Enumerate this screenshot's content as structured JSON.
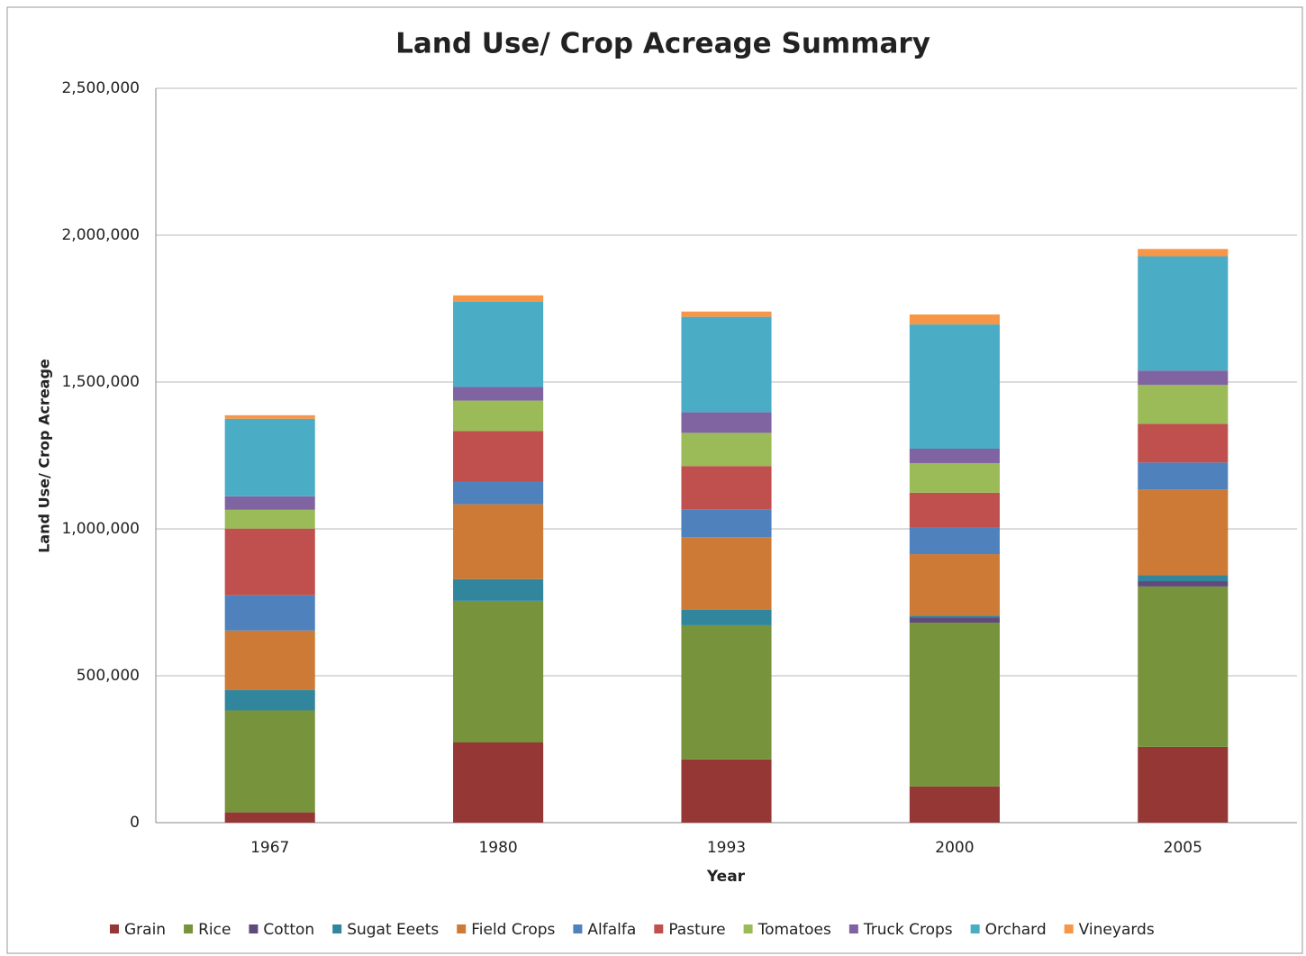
{
  "chart_data": {
    "type": "stacked_bar",
    "title": "Land Use/ Crop Acreage Summary",
    "x_label": "Year",
    "y_label": "Land Use/ Crop Acreage",
    "categories": [
      "1967",
      "1980",
      "1993",
      "2000",
      "2005"
    ],
    "series": [
      {
        "name": "Grain",
        "color": "#953735",
        "values": [
          35000,
          273000,
          215000,
          123000,
          258000
        ]
      },
      {
        "name": "Rice",
        "color": "#77933c",
        "values": [
          347000,
          482000,
          457000,
          558000,
          546000
        ]
      },
      {
        "name": "Cotton",
        "color": "#604a7b",
        "values": [
          0,
          0,
          0,
          18000,
          18000
        ]
      },
      {
        "name": "Sugat Eeets",
        "color": "#31859c",
        "values": [
          70000,
          74000,
          52000,
          6000,
          21000
        ]
      },
      {
        "name": "Field Crops",
        "color": "#cd7a36",
        "values": [
          202000,
          255000,
          248000,
          209000,
          291000
        ]
      },
      {
        "name": "Alfalfa",
        "color": "#4f81bd",
        "values": [
          120000,
          77000,
          95000,
          92000,
          92000
        ]
      },
      {
        "name": "Pasture",
        "color": "#c0504d",
        "values": [
          227000,
          172000,
          147000,
          117000,
          132000
        ]
      },
      {
        "name": "Tomatoes",
        "color": "#9bbb59",
        "values": [
          64000,
          104000,
          113000,
          101000,
          132000
        ]
      },
      {
        "name": "Truck Crops",
        "color": "#8064a2",
        "values": [
          46000,
          46000,
          70000,
          49000,
          49000
        ]
      },
      {
        "name": "Orchard",
        "color": "#4bacc6",
        "values": [
          264000,
          291000,
          325000,
          423000,
          389000
        ]
      },
      {
        "name": "Vineyards",
        "color": "#f79646",
        "values": [
          12000,
          21000,
          18000,
          34000,
          25000
        ]
      }
    ],
    "ylim": [
      0,
      2500000
    ],
    "yticks": [
      0,
      {
        "value": 500000,
        "label": "500,000"
      },
      {
        "value": 1000000,
        "label": "1,000,000"
      },
      {
        "value": 1500000,
        "label": "1,500,000"
      },
      {
        "value": 2000000,
        "label": "2,000,000"
      },
      {
        "value": 2500000,
        "label": "2,500,000"
      }
    ],
    "grid": true,
    "legend": "bottom"
  }
}
